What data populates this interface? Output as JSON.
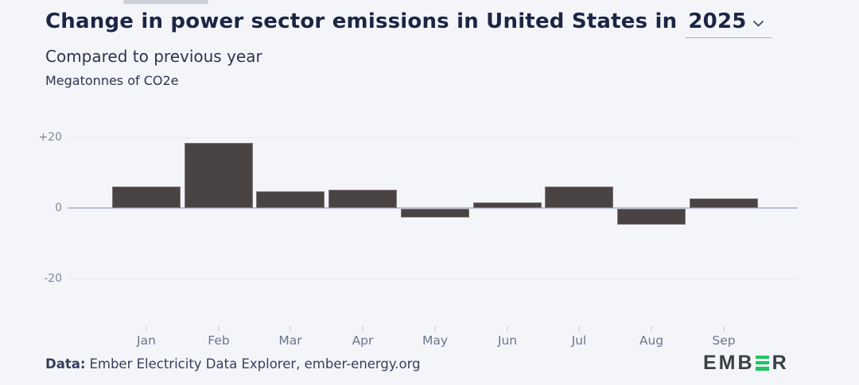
{
  "page": {
    "background": "#f4f5f9"
  },
  "header": {
    "title_prefix": "Change in power sector emissions in United States in",
    "year": "2025",
    "subtitle": "Compared to previous year",
    "units_label": "Megatonnes of CO2e"
  },
  "chart_data": {
    "type": "bar",
    "title": "Change in power sector emissions in United States in 2025",
    "subtitle": "Compared to previous year",
    "ylabel": "Megatonnes of CO2e",
    "categories": [
      "Jan",
      "Feb",
      "Mar",
      "Apr",
      "May",
      "Jun",
      "Jul",
      "Aug",
      "Sep"
    ],
    "values": [
      6.1,
      18.5,
      4.8,
      5.2,
      -2.5,
      1.5,
      6.0,
      -4.5,
      2.8
    ],
    "yticks": [
      {
        "label": "+20",
        "value": 20
      },
      {
        "label": "0",
        "value": 0
      },
      {
        "label": "-20",
        "value": -20
      }
    ],
    "ylim": [
      -25,
      25
    ],
    "grid": true,
    "legend": false,
    "bar_color": "#4a4344",
    "bar_border_color": "#7e7678",
    "zero_line_color": "#bcc3cf",
    "gridline_color": "#e8eaf0"
  },
  "footer": {
    "source_label": "Data:",
    "source_text": "Ember Electricity Data Explorer, ember-energy.org",
    "logo": {
      "text_left": "EMB",
      "text_right": "R",
      "green_icon": "ember-green-e-icon",
      "green": "#1fc45f",
      "dark": "#3a3f46"
    }
  }
}
